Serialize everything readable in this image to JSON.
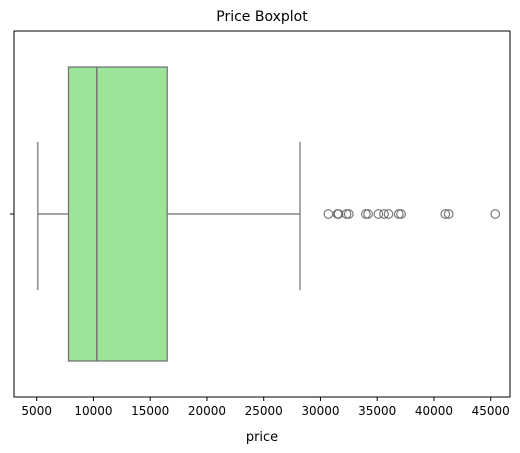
{
  "chart_data": {
    "type": "boxplot",
    "orientation": "horizontal",
    "title": "Price Boxplot",
    "xlabel": "price",
    "ylabel": "",
    "xlim": [
      3000,
      46700
    ],
    "x_ticks": [
      5000,
      10000,
      15000,
      20000,
      25000,
      30000,
      35000,
      40000,
      45000
    ],
    "box_color": "#9de39a",
    "line_color": "#6f6f6f",
    "stats": {
      "whisker_low": 5100,
      "q1": 7800,
      "median": 10300,
      "q3": 16500,
      "whisker_high": 28200
    },
    "outliers": [
      30700,
      31500,
      31600,
      32300,
      32500,
      34000,
      34200,
      35100,
      35600,
      36000,
      36900,
      37100,
      41000,
      41300,
      45400
    ],
    "grid": false,
    "legend": "none"
  }
}
